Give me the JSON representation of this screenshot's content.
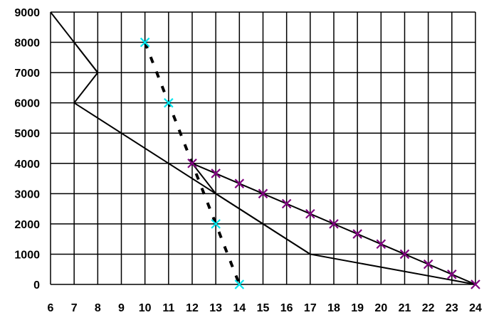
{
  "chart_data": {
    "type": "line",
    "title": "",
    "xlabel": "",
    "ylabel": "",
    "xlim": [
      6,
      24
    ],
    "ylim": [
      0,
      9000
    ],
    "x_ticks": [
      "6",
      "7",
      "8",
      "9",
      "10",
      "11",
      "12",
      "13",
      "14",
      "15",
      "16",
      "17",
      "18",
      "19",
      "20",
      "21",
      "22",
      "23",
      "24"
    ],
    "y_ticks": [
      "0",
      "1000",
      "2000",
      "3000",
      "4000",
      "5000",
      "6000",
      "7000",
      "8000",
      "9000"
    ],
    "grid": true,
    "legend": "none",
    "series": [
      {
        "style": "solid black line, no markers",
        "color": "#000000",
        "points": [
          [
            6,
            9000
          ],
          [
            7,
            8000
          ],
          [
            8,
            7000
          ],
          [
            7,
            6000
          ],
          [
            17,
            1000
          ],
          [
            24,
            0
          ]
        ]
      },
      {
        "style": "solid black line, no markers",
        "color": "#000000",
        "points": [
          [
            7,
            8000
          ],
          [
            8,
            7000
          ]
        ]
      },
      {
        "style": "solid black line, no markers",
        "color": "#000000",
        "points": [
          [
            12,
            4000
          ],
          [
            13,
            3000
          ],
          [
            15,
            2000
          ],
          [
            17,
            1000
          ]
        ]
      },
      {
        "style": "dashed black line with cyan x markers",
        "color": "#000000",
        "marker_color": "#00e5ee",
        "points": [
          [
            10,
            8000
          ],
          [
            11,
            6000
          ],
          [
            13,
            2000
          ],
          [
            14,
            0
          ]
        ]
      },
      {
        "style": "solid black line with purple x markers",
        "color": "#000000",
        "marker_color": "#800080",
        "points": [
          [
            12,
            4000
          ],
          [
            13,
            3667
          ],
          [
            14,
            3333
          ],
          [
            15,
            3000
          ],
          [
            16,
            2667
          ],
          [
            17,
            2333
          ],
          [
            18,
            2000
          ],
          [
            19,
            1667
          ],
          [
            20,
            1333
          ],
          [
            21,
            1000
          ],
          [
            22,
            667
          ],
          [
            23,
            333
          ],
          [
            24,
            0
          ]
        ]
      }
    ]
  }
}
